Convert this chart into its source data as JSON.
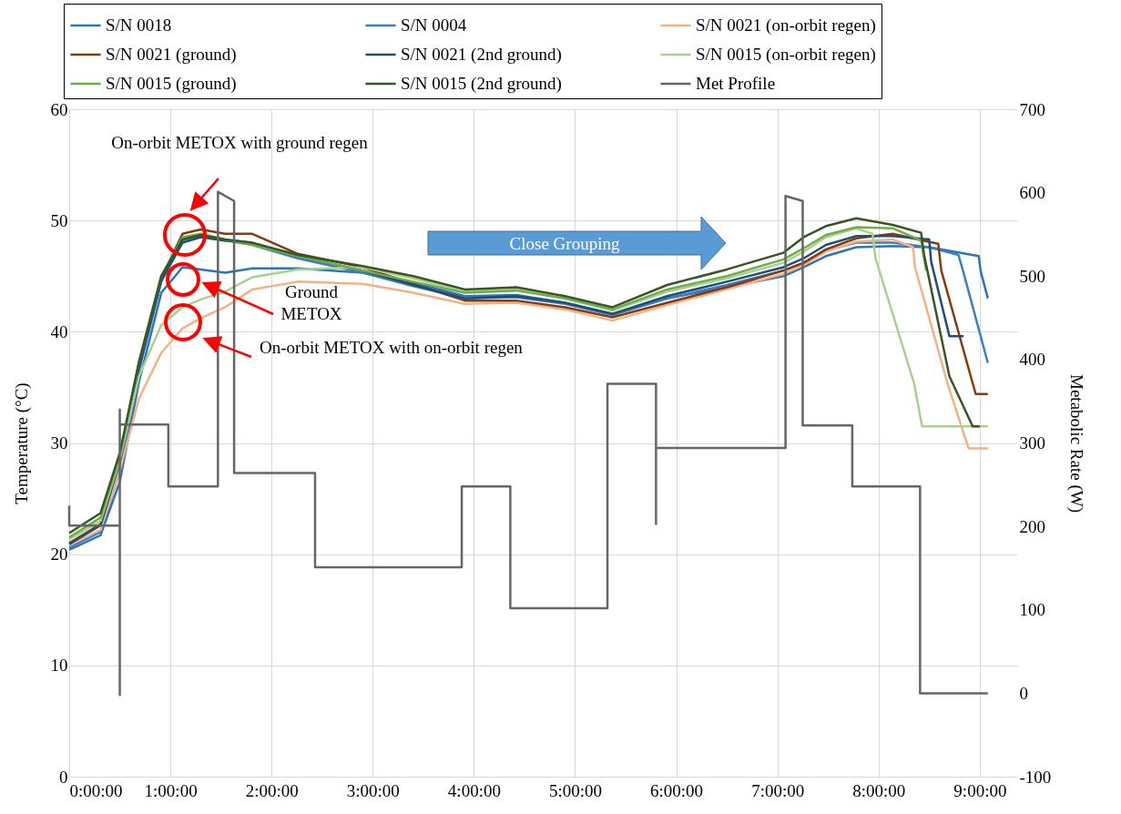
{
  "chart_data": {
    "type": "line",
    "xlabel": null,
    "ylabel": "Temperature (°C)",
    "y2label": "Metabolic Rate (W)",
    "xlim": [
      0,
      9.37
    ],
    "xticks": [
      {
        "value": 0,
        "label": "0:00:00"
      },
      {
        "value": 1,
        "label": "1:00:00"
      },
      {
        "value": 2,
        "label": "2:00:00"
      },
      {
        "value": 3,
        "label": "3:00:00"
      },
      {
        "value": 4,
        "label": "4:00:00"
      },
      {
        "value": 5,
        "label": "5:00:00"
      },
      {
        "value": 6,
        "label": "6:00:00"
      },
      {
        "value": 7,
        "label": "7:00:00"
      },
      {
        "value": 8,
        "label": "8:00:00"
      },
      {
        "value": 9,
        "label": "9:00:00"
      }
    ],
    "ylim": [
      0,
      60
    ],
    "yticks": [
      0,
      10,
      20,
      30,
      40,
      50,
      60
    ],
    "y2lim": [
      -100,
      700
    ],
    "y2ticks": [
      -100,
      0,
      100,
      200,
      300,
      400,
      500,
      600,
      700
    ],
    "grid": true,
    "legend": "top",
    "series": [
      {
        "name": "S/N 0018",
        "color": "#2e75b6",
        "x": [
          0,
          0.31,
          0.5,
          0.69,
          0.91,
          1.12,
          1.3,
          1.54,
          1.81,
          2.26,
          2.9,
          3.4,
          3.91,
          4.42,
          4.9,
          5.37,
          5.91,
          6.5,
          7.06,
          7.26,
          7.48,
          7.78,
          8.14,
          8.5,
          8.99,
          9.01,
          9.08
        ],
        "values": [
          20.4,
          21.7,
          26.5,
          35.5,
          43.5,
          45.8,
          45.6,
          45.3,
          45.7,
          45.7,
          45.3,
          44.4,
          43.2,
          43.3,
          42.6,
          41.6,
          43.0,
          44.0,
          45.0,
          45.8,
          46.8,
          47.6,
          47.7,
          47.6,
          46.8,
          45.4,
          43.0
        ]
      },
      {
        "name": "S/N 0004",
        "color": "#3b7ec2",
        "x": [
          0,
          0.31,
          0.5,
          0.69,
          0.91,
          1.12,
          1.3,
          1.54,
          1.81,
          2.26,
          2.9,
          3.4,
          3.91,
          4.42,
          4.9,
          5.37,
          5.91,
          6.5,
          7.06,
          7.26,
          7.48,
          7.78,
          8.14,
          8.5,
          8.79,
          8.84,
          9.08
        ],
        "values": [
          20.6,
          22.0,
          27.5,
          36.5,
          44.5,
          48.2,
          48.6,
          48.2,
          47.8,
          46.6,
          45.3,
          44.1,
          43.0,
          43.1,
          42.5,
          41.5,
          43.0,
          44.2,
          45.5,
          46.2,
          47.3,
          48.0,
          48.0,
          47.6,
          46.9,
          45.3,
          37.2
        ]
      },
      {
        "name": "S/N 0021 (on-orbit regen)",
        "color": "#f4b183",
        "x": [
          0,
          0.31,
          0.5,
          0.69,
          0.91,
          1.12,
          1.3,
          1.54,
          1.81,
          2.26,
          2.9,
          3.4,
          3.91,
          4.42,
          4.9,
          5.37,
          5.91,
          6.5,
          7.06,
          7.26,
          7.48,
          7.78,
          8.14,
          8.34,
          8.36,
          8.68,
          8.89,
          9.08
        ],
        "values": [
          20.8,
          22.2,
          27.5,
          34.0,
          38.1,
          40.3,
          41.2,
          42.2,
          43.8,
          44.5,
          44.3,
          43.5,
          42.5,
          42.6,
          42.0,
          41.0,
          42.4,
          43.8,
          45.2,
          46.0,
          47.2,
          48.1,
          48.3,
          47.6,
          45.8,
          35.4,
          29.5,
          29.5
        ]
      },
      {
        "name": "S/N 0021 (ground)",
        "color": "#843c0c",
        "x": [
          0,
          0.31,
          0.5,
          0.69,
          0.91,
          1.12,
          1.3,
          1.54,
          1.81,
          2.26,
          2.9,
          3.4,
          3.91,
          4.42,
          4.9,
          5.37,
          5.91,
          6.5,
          7.06,
          7.26,
          7.48,
          7.78,
          8.14,
          8.59,
          8.62,
          8.96,
          9.08
        ],
        "values": [
          21.0,
          22.7,
          28.5,
          37.0,
          44.8,
          48.8,
          49.2,
          48.8,
          48.8,
          47.0,
          45.8,
          44.3,
          42.8,
          42.8,
          42.2,
          41.3,
          42.6,
          44.0,
          45.5,
          46.2,
          47.4,
          48.4,
          48.8,
          47.9,
          45.5,
          34.4,
          34.4
        ]
      },
      {
        "name": "S/N 0021 (2nd ground)",
        "color": "#1f4e79",
        "x": [
          0,
          0.31,
          0.5,
          0.69,
          0.91,
          1.12,
          1.3,
          1.54,
          1.81,
          2.26,
          2.9,
          3.4,
          3.91,
          4.42,
          4.9,
          5.37,
          5.91,
          6.5,
          7.06,
          7.26,
          7.48,
          7.78,
          8.14,
          8.5,
          8.52,
          8.7,
          8.84
        ],
        "values": [
          20.9,
          22.6,
          28.3,
          36.8,
          44.6,
          48.0,
          48.5,
          48.2,
          48.0,
          46.8,
          45.5,
          44.2,
          43.0,
          43.2,
          42.6,
          41.6,
          43.2,
          44.5,
          45.8,
          46.6,
          47.8,
          48.6,
          48.6,
          48.3,
          46.3,
          39.6,
          39.6
        ]
      },
      {
        "name": "S/N 0015 (on-orbit regen)",
        "color": "#a9d18e",
        "x": [
          0,
          0.31,
          0.5,
          0.69,
          0.91,
          1.12,
          1.3,
          1.54,
          1.81,
          2.26,
          2.9,
          3.4,
          3.91,
          4.42,
          4.9,
          5.37,
          5.91,
          6.5,
          7.06,
          7.26,
          7.48,
          7.78,
          7.94,
          7.97,
          8.35,
          8.43,
          9.08
        ],
        "values": [
          21.3,
          23.0,
          28.5,
          36.0,
          40.6,
          42.2,
          42.9,
          43.6,
          44.9,
          45.6,
          45.8,
          44.8,
          43.6,
          43.8,
          43.0,
          41.9,
          43.6,
          44.8,
          46.2,
          47.2,
          48.5,
          49.3,
          48.8,
          46.6,
          35.4,
          31.5,
          31.5
        ]
      },
      {
        "name": "S/N 0015 (ground)",
        "color": "#70ad47",
        "x": [
          0,
          0.31,
          0.5,
          0.69,
          0.91,
          1.12,
          1.3,
          1.54,
          1.81,
          2.26,
          2.9,
          3.4,
          3.91,
          4.42,
          4.9,
          5.37,
          5.91,
          6.5,
          7.06,
          7.26,
          7.48,
          7.78,
          8.14,
          8.42,
          8.47
        ],
        "values": [
          21.5,
          23.3,
          28.8,
          37.3,
          45.0,
          48.5,
          48.8,
          48.3,
          47.8,
          46.8,
          45.5,
          44.5,
          43.5,
          43.7,
          43.0,
          42.0,
          43.8,
          45.0,
          46.5,
          47.5,
          48.7,
          49.4,
          49.3,
          48.2,
          45.5
        ]
      },
      {
        "name": "S/N 0015 (2nd ground)",
        "color": "#375623",
        "x": [
          0,
          0.31,
          0.5,
          0.69,
          0.91,
          1.12,
          1.3,
          1.54,
          1.81,
          2.26,
          2.9,
          3.4,
          3.91,
          4.42,
          4.9,
          5.37,
          5.91,
          6.5,
          7.06,
          7.26,
          7.48,
          7.78,
          8.14,
          8.42,
          8.45,
          8.7,
          8.93,
          9.0
        ],
        "values": [
          21.9,
          23.7,
          29.1,
          37.3,
          45.0,
          48.3,
          48.7,
          48.3,
          48.0,
          46.9,
          45.9,
          45.0,
          43.8,
          44.0,
          43.2,
          42.2,
          44.2,
          45.6,
          47.1,
          48.5,
          49.5,
          50.2,
          49.6,
          48.9,
          46.9,
          36.0,
          31.5,
          31.5
        ]
      },
      {
        "name": "Met Profile",
        "color": "#666666",
        "axis": "y2",
        "x": [
          0,
          0,
          0.5,
          0.5,
          0.5,
          0.5,
          0.98,
          0.98,
          1.47,
          1.47,
          1.63,
          1.63,
          2.43,
          2.43,
          3.88,
          3.88,
          4.36,
          4.36,
          5.32,
          5.32,
          5.8,
          5.8,
          5.8,
          7.08,
          7.08,
          7.25,
          7.25,
          7.74,
          7.74,
          8.41,
          8.41,
          9.08
        ],
        "values": [
          225,
          201,
          201,
          -2,
          340,
          322,
          322,
          248,
          248,
          601,
          590,
          264,
          264,
          151,
          151,
          248,
          248,
          102,
          102,
          371,
          371,
          203,
          294,
          294,
          596,
          590,
          321,
          321,
          248,
          248,
          0,
          0
        ]
      }
    ],
    "annotations": [
      "On-orbit METOX with ground regen",
      "Ground\nMETOX",
      "On-orbit METOX with on-orbit regen",
      "Close Grouping"
    ]
  }
}
